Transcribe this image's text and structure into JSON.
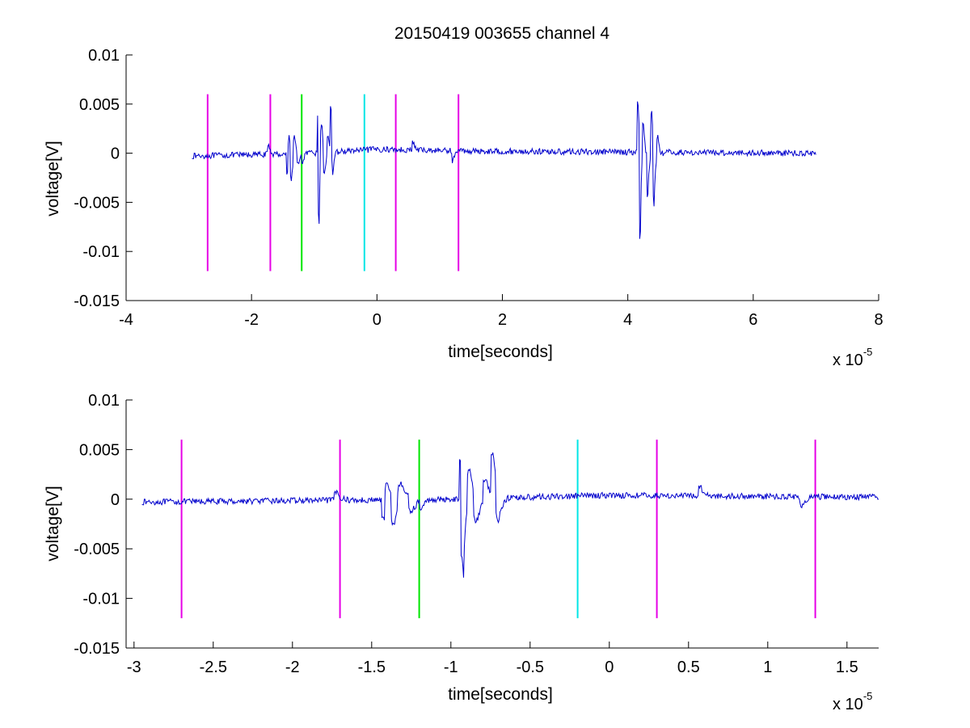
{
  "colors": {
    "signal": "#0000cc",
    "marker_magenta": "#e600e6",
    "marker_green": "#00e600",
    "marker_cyan": "#00e6e6",
    "axes": "#000000"
  },
  "chart_data": [
    {
      "type": "line",
      "title": "20150419 003655 channel 4",
      "xlabel": "time[seconds]",
      "ylabel": "voltage[V]",
      "x_multiplier": "x 10",
      "x_multiplier_exp": "-5",
      "xlim": [
        -4,
        8
      ],
      "ylim": [
        -0.015,
        0.01
      ],
      "xticks": [
        -4,
        -2,
        0,
        2,
        4,
        6,
        8
      ],
      "xtick_labels": [
        "-4",
        "-2",
        "0",
        "2",
        "4",
        "6",
        "8"
      ],
      "yticks": [
        0.01,
        0.005,
        0,
        -0.005,
        -0.01,
        -0.015
      ],
      "ytick_labels": [
        "0.01",
        "0.005",
        "0",
        "-0.005",
        "-0.01",
        "-0.015"
      ],
      "grid": false,
      "signal_range": [
        -2.95,
        7.0
      ],
      "markers": [
        {
          "x": -2.7,
          "color": "magenta",
          "y_range": [
            -0.012,
            0.006
          ]
        },
        {
          "x": -1.7,
          "color": "magenta",
          "y_range": [
            -0.012,
            0.006
          ]
        },
        {
          "x": -1.2,
          "color": "green",
          "y_range": [
            -0.012,
            0.006
          ]
        },
        {
          "x": -0.2,
          "color": "cyan",
          "y_range": [
            -0.012,
            0.006
          ]
        },
        {
          "x": 0.3,
          "color": "magenta",
          "y_range": [
            -0.012,
            0.006
          ]
        },
        {
          "x": 1.3,
          "color": "magenta",
          "y_range": [
            -0.012,
            0.006
          ]
        }
      ]
    },
    {
      "type": "line",
      "title": "",
      "xlabel": "time[seconds]",
      "ylabel": "voltage[V]",
      "x_multiplier": "x 10",
      "x_multiplier_exp": "-5",
      "xlim": [
        -3.05,
        1.7
      ],
      "ylim": [
        -0.015,
        0.01
      ],
      "xticks": [
        -3,
        -2.5,
        -2,
        -1.5,
        -1,
        -0.5,
        0,
        0.5,
        1,
        1.5
      ],
      "xtick_labels": [
        "-3",
        "-2.5",
        "-2",
        "-1.5",
        "-1",
        "-0.5",
        "0",
        "0.5",
        "1",
        "1.5"
      ],
      "yticks": [
        0.01,
        0.005,
        0,
        -0.005,
        -0.01,
        -0.015
      ],
      "ytick_labels": [
        "0.01",
        "0.005",
        "0",
        "-0.005",
        "-0.01",
        "-0.015"
      ],
      "grid": false,
      "signal_range": [
        -2.95,
        1.7
      ],
      "markers": [
        {
          "x": -2.7,
          "color": "magenta",
          "y_range": [
            -0.012,
            0.006
          ]
        },
        {
          "x": -1.7,
          "color": "magenta",
          "y_range": [
            -0.012,
            0.006
          ]
        },
        {
          "x": -1.2,
          "color": "green",
          "y_range": [
            -0.012,
            0.006
          ]
        },
        {
          "x": -0.2,
          "color": "cyan",
          "y_range": [
            -0.012,
            0.006
          ]
        },
        {
          "x": 0.3,
          "color": "magenta",
          "y_range": [
            -0.012,
            0.006
          ]
        },
        {
          "x": 1.3,
          "color": "magenta",
          "y_range": [
            -0.012,
            0.006
          ]
        }
      ]
    }
  ],
  "signal_features": [
    {
      "x": -1.72,
      "amp": 0.0008,
      "decay": 0.03,
      "freq": 3
    },
    {
      "x": -1.42,
      "amp": -0.002,
      "decay": 0.05,
      "freq": 4
    },
    {
      "x": -1.4,
      "amp": 0.003,
      "decay": 0.03,
      "freq": 5
    },
    {
      "x": -1.36,
      "amp": -0.0028,
      "decay": 0.03,
      "freq": 5
    },
    {
      "x": -1.32,
      "amp": 0.0018,
      "decay": 0.04,
      "freq": 4
    },
    {
      "x": -1.25,
      "amp": -0.0012,
      "decay": 0.06,
      "freq": 5
    },
    {
      "x": -1.18,
      "amp": -0.001,
      "decay": 0.04,
      "freq": 3
    },
    {
      "x": -0.93,
      "amp": 0.004,
      "decay": 0.02,
      "freq": 6
    },
    {
      "x": -0.92,
      "amp": -0.01,
      "decay": 0.012,
      "freq": 4
    },
    {
      "x": -0.88,
      "amp": 0.0035,
      "decay": 0.03,
      "freq": 6
    },
    {
      "x": -0.84,
      "amp": -0.0025,
      "decay": 0.03,
      "freq": 5
    },
    {
      "x": -0.78,
      "amp": 0.002,
      "decay": 0.03,
      "freq": 5
    },
    {
      "x": -0.73,
      "amp": 0.0042,
      "decay": 0.025,
      "freq": 5
    },
    {
      "x": -0.7,
      "amp": -0.0032,
      "decay": 0.02,
      "freq": 5
    },
    {
      "x": 0.58,
      "amp": 0.0008,
      "decay": 0.03,
      "freq": 3
    },
    {
      "x": 1.22,
      "amp": -0.001,
      "decay": 0.03,
      "freq": 3
    },
    {
      "x": 4.17,
      "amp": 0.005,
      "decay": 0.015,
      "freq": 6
    },
    {
      "x": 4.2,
      "amp": -0.01,
      "decay": 0.012,
      "freq": 4
    },
    {
      "x": 4.25,
      "amp": 0.003,
      "decay": 0.03,
      "freq": 6
    },
    {
      "x": 4.32,
      "amp": -0.004,
      "decay": 0.03,
      "freq": 5
    },
    {
      "x": 4.38,
      "amp": 0.004,
      "decay": 0.03,
      "freq": 5
    },
    {
      "x": 4.42,
      "amp": -0.006,
      "decay": 0.02,
      "freq": 4
    },
    {
      "x": 4.48,
      "amp": 0.002,
      "decay": 0.03,
      "freq": 5
    }
  ],
  "signal_baseline": [
    {
      "x": -3.0,
      "y": -0.0003
    },
    {
      "x": -1.0,
      "y": 0.0
    },
    {
      "x": 0.0,
      "y": 0.0004
    },
    {
      "x": 1.7,
      "y": 0.0002
    },
    {
      "x": 7.0,
      "y": 0.0
    }
  ],
  "signal_noise": 0.0003
}
